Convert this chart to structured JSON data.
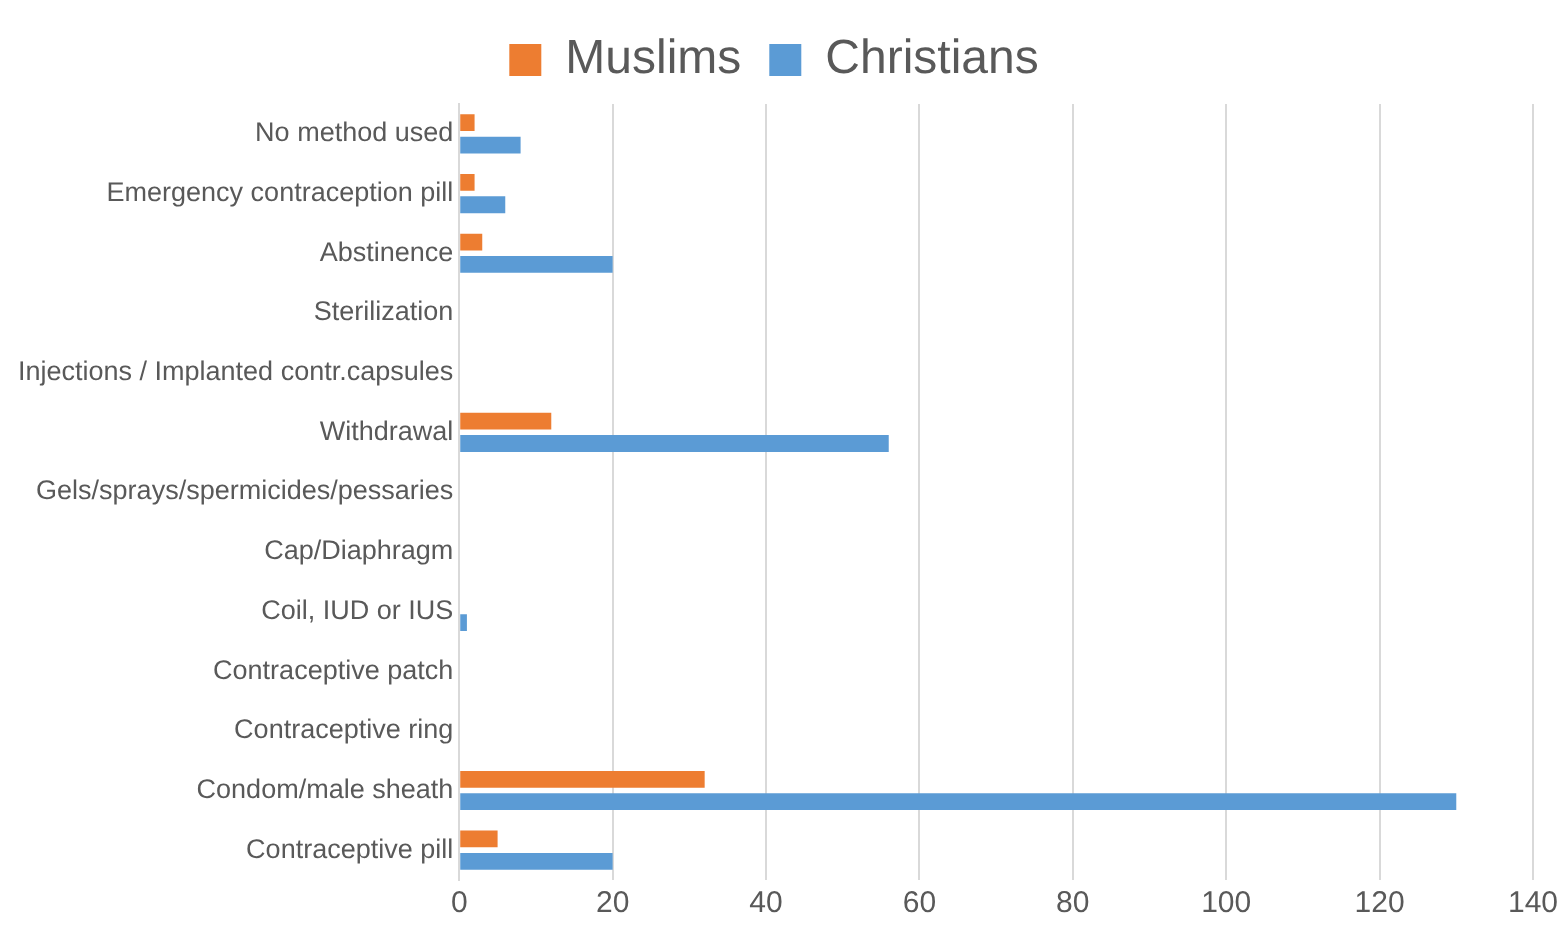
{
  "chart_data": {
    "type": "bar",
    "orientation": "horizontal",
    "categories": [
      "No method used",
      "Emergency contraception pill",
      "Abstinence",
      "Sterilization",
      "Injections / Implanted contr.capsules",
      "Withdrawal",
      "Gels/sprays/spermicides/pessaries",
      "Cap/Diaphragm",
      "Coil, IUD or IUS",
      "Contraceptive patch",
      "Contraceptive ring",
      "Condom/male sheath",
      "Contraceptive pill"
    ],
    "series": [
      {
        "name": "Muslims",
        "color": "#ed7d31",
        "values": [
          2,
          2,
          3,
          0,
          0,
          12,
          0,
          0,
          0,
          0,
          0,
          32,
          5
        ]
      },
      {
        "name": "Christians",
        "color": "#5b9bd5",
        "values": [
          8,
          6,
          20,
          0,
          0,
          56,
          0,
          0,
          1,
          0,
          0,
          130,
          20
        ]
      }
    ],
    "xlim": [
      0,
      140
    ],
    "xticks": [
      0,
      20,
      40,
      60,
      80,
      100,
      120,
      140
    ],
    "grid": "x",
    "legend": "top"
  }
}
